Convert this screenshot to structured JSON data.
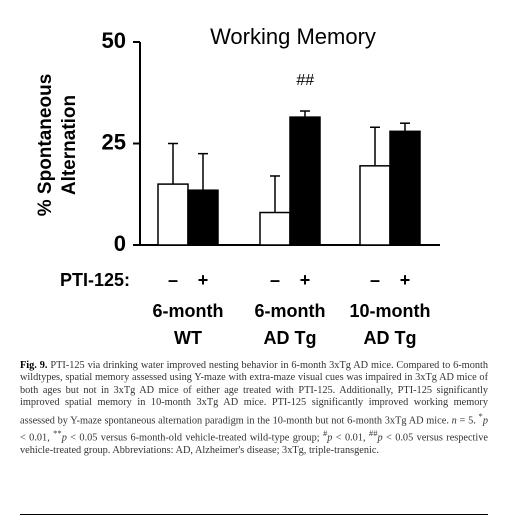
{
  "chart_data": {
    "type": "bar",
    "title": "Working Memory",
    "y_label": [
      "% Spontaneous",
      "Alternation"
    ],
    "group_label": "PTI-125:",
    "categories": [
      [
        "6-month",
        "WT"
      ],
      [
        "6-month",
        "AD Tg"
      ],
      [
        "10-month",
        "AD Tg"
      ]
    ],
    "series": [
      {
        "name": "–",
        "color": "#ffffff",
        "values": [
          15,
          8,
          19.5
        ],
        "errors": [
          10,
          9,
          9.5
        ]
      },
      {
        "name": "+",
        "color": "#000000",
        "values": [
          13.5,
          31.5,
          28
        ],
        "errors": [
          9,
          1.5,
          2
        ]
      }
    ],
    "annotations": [
      {
        "text": "##",
        "series": 1,
        "category": 1
      }
    ],
    "ylim": [
      0,
      50
    ],
    "yticks": [
      0,
      25,
      50
    ]
  },
  "caption": {
    "parts": [
      "Fig. 9.",
      " PTI-125 via drinking water improved nesting behavior in 6-month 3xTg AD mice. Compared to 6-month wildtypes, spatial memory assessed using Y-maze with extra-maze visual cues was impaired in 3xTg AD mice of both ages but not in 3xTg AD mice of either age treated with PTI-125. Additionally, PTI-125 significantly improved spatial memory in 10-month 3xTg AD mice. PTI-125 significantly improved working memory assessed by Y-maze spontaneous alternation paradigm in the 10-month but not 6-month 3xTg AD mice. ",
      "n",
      " = 5. ",
      "*",
      "p",
      " < 0.01, ",
      "**",
      "p",
      " < 0.05 versus 6-month-old vehicle-treated wild-type group; ",
      "#",
      "p",
      " < 0.01, ",
      "##",
      "p",
      " < 0.05 versus respective vehicle-treated group. Abbreviations: AD, Alzheimer's disease; 3xTg, triple-transgenic."
    ]
  }
}
